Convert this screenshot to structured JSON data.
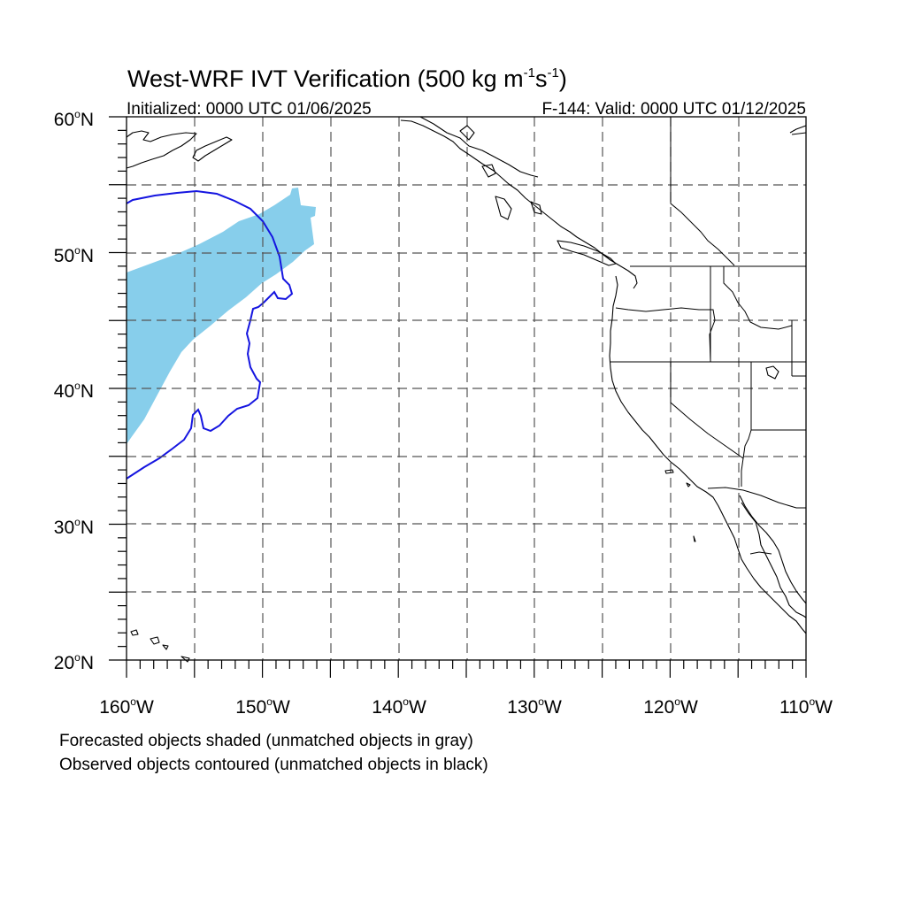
{
  "title": {
    "main": "West-WRF IVT Verification (500 kg m",
    "sup1": "-1",
    "mid": "s",
    "sup2": "-1",
    "end": ")"
  },
  "subtitle_left": "Initialized: 0000 UTC 01/06/2025",
  "subtitle_right": "F-144: Valid: 0000 UTC 01/12/2025",
  "lat_labels": [
    {
      "value": "60",
      "suffix": "N"
    },
    {
      "value": "50",
      "suffix": "N"
    },
    {
      "value": "40",
      "suffix": "N"
    },
    {
      "value": "30",
      "suffix": "N"
    },
    {
      "value": "20",
      "suffix": "N"
    }
  ],
  "lon_labels": [
    {
      "value": "160",
      "suffix": "W"
    },
    {
      "value": "150",
      "suffix": "W"
    },
    {
      "value": "140",
      "suffix": "W"
    },
    {
      "value": "130",
      "suffix": "W"
    },
    {
      "value": "120",
      "suffix": "W"
    },
    {
      "value": "110",
      "suffix": "W"
    }
  ],
  "degree_symbol": "o",
  "caption_line1": "Forecasted objects shaded (unmatched objects in gray)",
  "caption_line2": "Observed objects contoured (unmatched objects in black)",
  "map_extent": {
    "lon_min": -160,
    "lon_max": -110,
    "lat_min": 20,
    "lat_max": 60
  },
  "colors": {
    "forecast_object": "#87ceeb",
    "observed_contour": "#1515e0",
    "coastline": "#000000",
    "grid": "#555555"
  }
}
